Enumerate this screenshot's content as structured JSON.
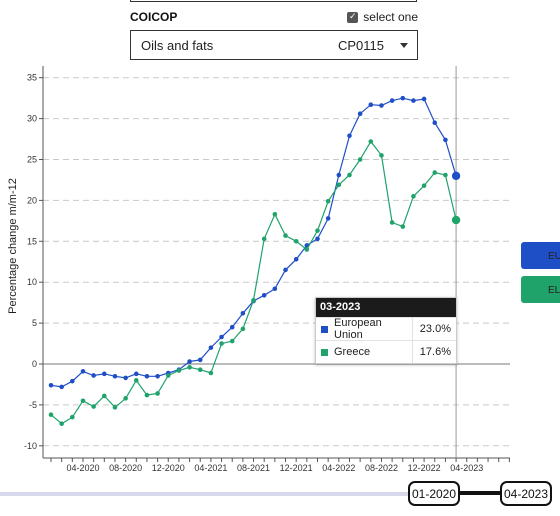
{
  "filter": {
    "label": "COICOP",
    "select_one_label": "select one",
    "select_one_checked": true,
    "selected_name": "Oils and fats",
    "selected_code": "CP0115"
  },
  "chart_data": {
    "type": "line",
    "ylabel": "Percentage change m/m-12",
    "xlabel": "",
    "ylim": [
      -11,
      36
    ],
    "yticks": [
      -10,
      -5,
      0,
      5,
      10,
      15,
      20,
      25,
      30,
      35
    ],
    "grid": true,
    "x": [
      "2020-01",
      "2020-02",
      "2020-03",
      "2020-04",
      "2020-05",
      "2020-06",
      "2020-07",
      "2020-08",
      "2020-09",
      "2020-10",
      "2020-11",
      "2020-12",
      "2021-01",
      "2021-02",
      "2021-03",
      "2021-04",
      "2021-05",
      "2021-06",
      "2021-07",
      "2021-08",
      "2021-09",
      "2021-10",
      "2021-11",
      "2021-12",
      "2022-01",
      "2022-02",
      "2022-03",
      "2022-04",
      "2022-05",
      "2022-06",
      "2022-07",
      "2022-08",
      "2022-09",
      "2022-10",
      "2022-11",
      "2022-12",
      "2023-01",
      "2023-02",
      "2023-03"
    ],
    "xtick_labels": [
      "04-2020",
      "08-2020",
      "12-2020",
      "04-2021",
      "08-2021",
      "12-2021",
      "04-2022",
      "08-2022",
      "12-2022",
      "04-2023"
    ],
    "xtick_dates": [
      "2020-04",
      "2020-08",
      "2020-12",
      "2021-04",
      "2021-08",
      "2021-12",
      "2022-04",
      "2022-08",
      "2022-12",
      "2023-04"
    ],
    "highlight_date": "2023-03",
    "series": [
      {
        "name": "European Union",
        "color": "#1f4fc7",
        "values": [
          -2.6,
          -2.8,
          -2.1,
          -0.9,
          -1.4,
          -1.2,
          -1.5,
          -1.7,
          -1.2,
          -1.5,
          -1.5,
          -1.1,
          -0.7,
          0.3,
          0.5,
          2.0,
          3.3,
          4.5,
          6.2,
          7.7,
          8.4,
          9.2,
          11.5,
          12.8,
          14.5,
          15.3,
          17.8,
          23.1,
          27.9,
          30.6,
          31.7,
          31.6,
          32.2,
          32.5,
          32.2,
          32.4,
          29.5,
          27.4,
          23.0
        ]
      },
      {
        "name": "Greece",
        "color": "#1fa36b",
        "values": [
          -6.2,
          -7.3,
          -6.5,
          -4.5,
          -5.2,
          -3.9,
          -5.3,
          -4.2,
          -2.0,
          -3.8,
          -3.6,
          -1.4,
          -0.8,
          -0.4,
          -0.7,
          -1.1,
          2.5,
          2.8,
          4.3,
          7.8,
          15.3,
          18.3,
          15.7,
          15.0,
          14.0,
          16.3,
          19.9,
          21.9,
          23.1,
          25.0,
          27.2,
          25.5,
          17.3,
          16.8,
          20.5,
          21.8,
          23.4,
          23.1,
          17.6
        ]
      }
    ],
    "tooltip": {
      "date": "03-2023",
      "rows": [
        {
          "name": "European Union",
          "value": "23.0%"
        },
        {
          "name": "Greece",
          "value": "17.6%"
        }
      ]
    },
    "legend": [
      {
        "label": "EU",
        "color": "#1f4fc7"
      },
      {
        "label": "EL",
        "color": "#1fa36b"
      }
    ]
  },
  "range": {
    "start": "01-2020",
    "end": "04-2023"
  }
}
